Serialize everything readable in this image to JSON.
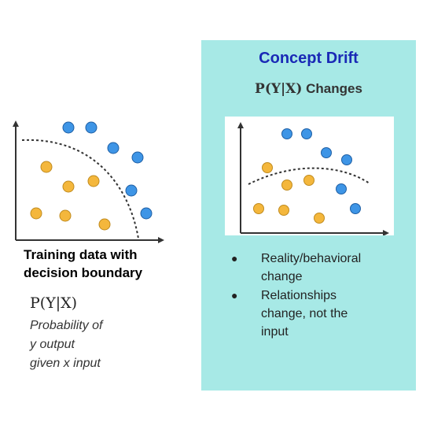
{
  "left": {
    "caption_line1": "Training data with",
    "caption_line2": "decision boundary",
    "formula": "P(Y|X)",
    "desc_line1": "Probability of",
    "desc_line2": "y output",
    "desc_line3": "given x input"
  },
  "right": {
    "title": "Concept Drift",
    "subtitle_formula": "P(Y|X)",
    "subtitle_suffix": " Changes",
    "bullets": [
      [
        "Reality/behavioral",
        "change"
      ],
      [
        "Relationships",
        "change, not the",
        "input"
      ]
    ]
  },
  "colors": {
    "panel": "#a7e9e6",
    "title": "#1a29b6",
    "orange_point": "#f4b73c",
    "blue_point": "#3e95e6"
  }
}
